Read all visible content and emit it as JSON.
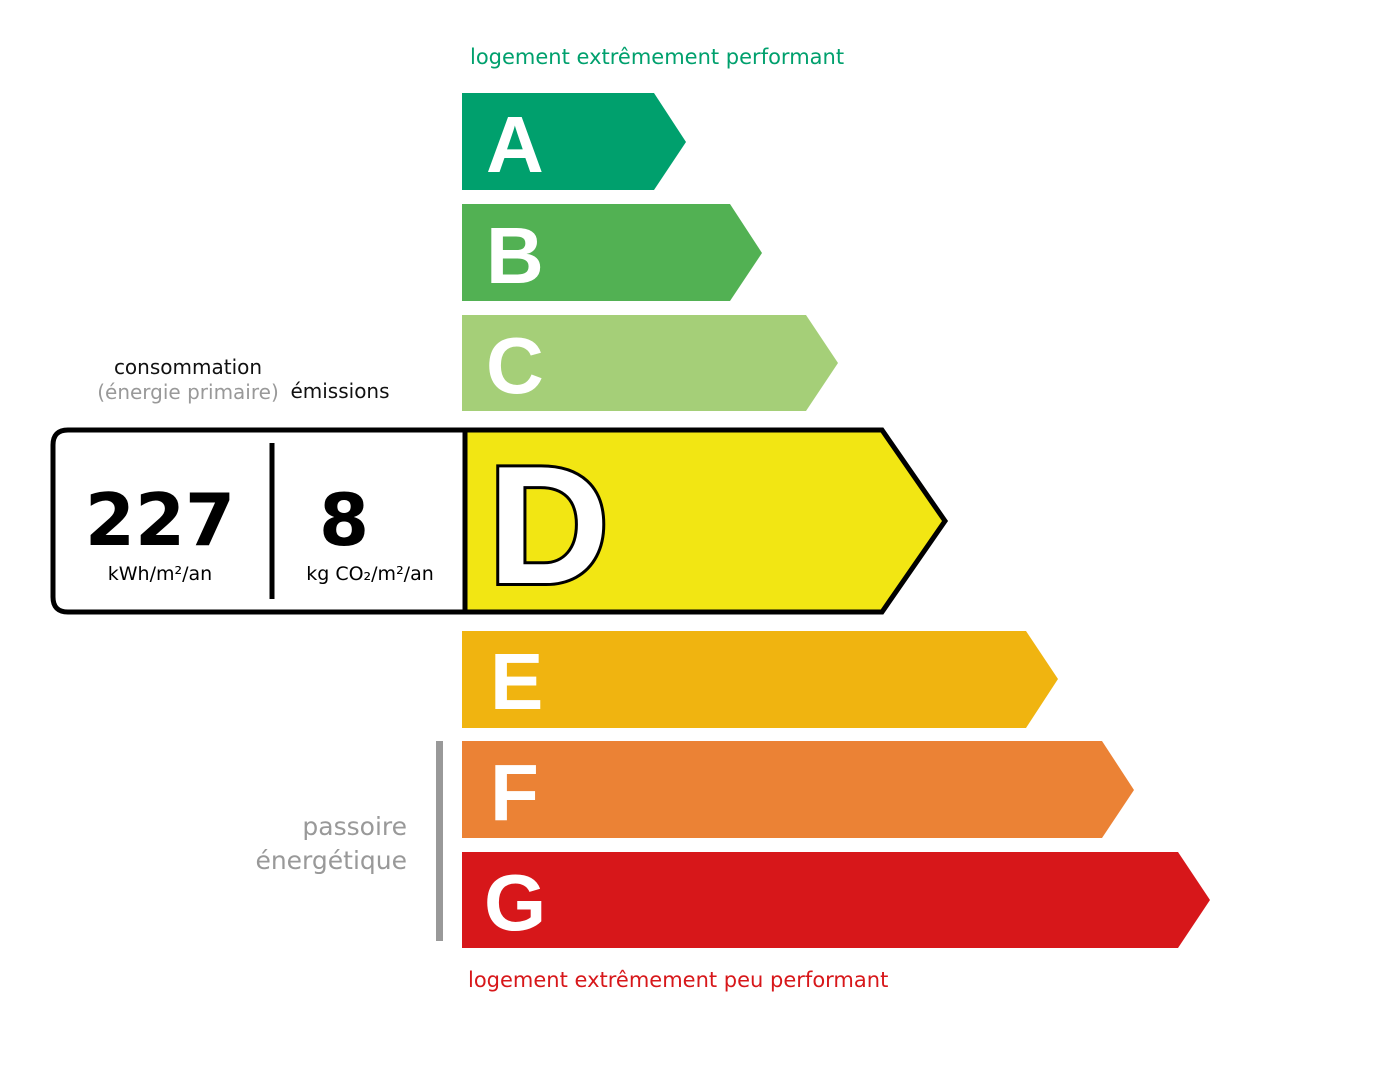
{
  "top_label": "logement extrêmement performant",
  "bottom_label": "logement extrêmement peu performant",
  "passoire": {
    "line1": "passoire",
    "line2": "énergétique"
  },
  "headers": {
    "consommation": "consommation",
    "energie_primaire": "(énergie primaire)",
    "emissions": "émissions"
  },
  "current": {
    "class": "D",
    "consumption_value": "227",
    "consumption_unit": "kWh/m²/an",
    "emissions_value": "8",
    "emissions_unit": "kg CO₂/m²/an"
  },
  "classes": [
    {
      "letter": "A",
      "color": "#00a06d"
    },
    {
      "letter": "B",
      "color": "#52b153"
    },
    {
      "letter": "C",
      "color": "#a5cf78"
    },
    {
      "letter": "D",
      "color": "#f2e613"
    },
    {
      "letter": "E",
      "color": "#f0b410"
    },
    {
      "letter": "F",
      "color": "#eb8235"
    },
    {
      "letter": "G",
      "color": "#d7171a"
    }
  ],
  "colors": {
    "top_label": "#00a06d",
    "bottom_label": "#d7171a",
    "muted": "#999999"
  }
}
